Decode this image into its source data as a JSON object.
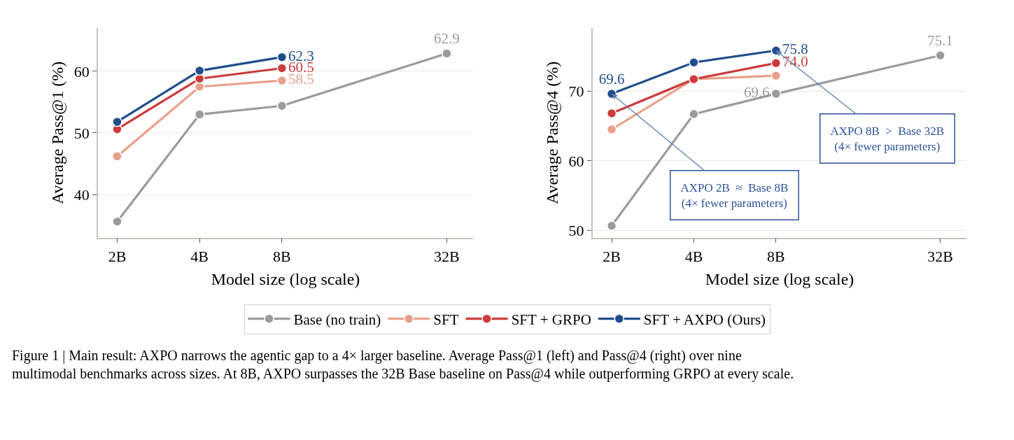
{
  "chart_data": [
    {
      "type": "line",
      "ylabel": "Average Pass@1 (%)",
      "xlabel": "Model size (log scale)",
      "log": "x",
      "x": [
        2,
        4,
        8,
        32
      ],
      "xlim": [
        1.7,
        40
      ],
      "xticks": [
        {
          "value": 2,
          "label": "2B"
        },
        {
          "value": 4,
          "label": "4B"
        },
        {
          "value": 8,
          "label": "8B"
        },
        {
          "value": 32,
          "label": "32B"
        }
      ],
      "ylim": [
        33,
        67
      ],
      "yticks": [
        40,
        50,
        60
      ],
      "grid": "y",
      "legend": "bottom",
      "marker": "circle",
      "line_style": "solid",
      "series": [
        {
          "name": "Base (no train)",
          "color": "#9b9b9b",
          "values": [
            35.6,
            53.0,
            54.4,
            62.9
          ],
          "value_labels": [
            null,
            null,
            null,
            "62.9"
          ]
        },
        {
          "name": "SFT",
          "color": "#e8a08a",
          "x": [
            2,
            4,
            8
          ],
          "values": [
            46.2,
            57.5,
            58.5
          ],
          "value_labels": [
            null,
            null,
            "58.5"
          ]
        },
        {
          "name": "SFT + GRPO",
          "color": "#cc3b3b",
          "x": [
            2,
            4,
            8
          ],
          "values": [
            50.6,
            58.8,
            60.5
          ],
          "value_labels": [
            null,
            null,
            "60.5"
          ]
        },
        {
          "name": "SFT + AXPO (Ours)",
          "color": "#1f4e8c",
          "x": [
            2,
            4,
            8
          ],
          "values": [
            51.8,
            60.1,
            62.3
          ],
          "value_labels": [
            null,
            null,
            "62.3"
          ]
        }
      ],
      "annotations": [
        "Figure 1 | Main result: AXPO narrows the agentic gap to a 4× larger baseline. Average Pass@1 (left) and Pass@4 (right) over nine multimodal benchmarks across sizes. At 8B, AXPO surpasses the 32B Base baseline on Pass@4 while outperforming GRPO at every scale."
      ]
    },
    {
      "type": "line",
      "ylabel": "Average Pass@4 (%)",
      "xlabel": "Model size (log scale)",
      "log": "x",
      "x": [
        2,
        4,
        8,
        32
      ],
      "xlim": [
        1.7,
        40
      ],
      "xticks": [
        {
          "value": 2,
          "label": "2B"
        },
        {
          "value": 4,
          "label": "4B"
        },
        {
          "value": 8,
          "label": "8B"
        },
        {
          "value": 32,
          "label": "32B"
        }
      ],
      "ylim": [
        49,
        79
      ],
      "yticks": [
        50,
        60,
        70
      ],
      "grid": "y",
      "marker": "circle",
      "line_style": "solid",
      "series": [
        {
          "color": "#9b9b9b",
          "values": [
            50.7,
            66.7,
            69.6,
            75.1
          ],
          "value_labels": [
            null,
            null,
            "69.6",
            "75.1"
          ]
        },
        {
          "color": "#e8a08a",
          "x": [
            2,
            4,
            8
          ],
          "values": [
            64.5,
            71.7,
            72.2
          ],
          "value_labels": [
            null,
            null,
            null
          ]
        },
        {
          "color": "#cc3b3b",
          "x": [
            2,
            4,
            8
          ],
          "values": [
            66.8,
            71.7,
            74.0
          ],
          "value_labels": [
            null,
            null,
            "74.0"
          ]
        },
        {
          "color": "#1f4e8c",
          "x": [
            2,
            4,
            8
          ],
          "values": [
            69.6,
            74.1,
            75.8
          ],
          "value_labels": [
            "69.6",
            null,
            "75.8"
          ]
        }
      ],
      "annotations": [
        {
          "text": "AXPO 2B  ≈  Base 8B\n(4× fewer parameters)",
          "x": 2,
          "y": 69.6
        },
        {
          "text": "AXPO 8B  >  Base 32B\n(4× fewer parameters)",
          "x": 8,
          "y": 75.8
        }
      ]
    }
  ]
}
